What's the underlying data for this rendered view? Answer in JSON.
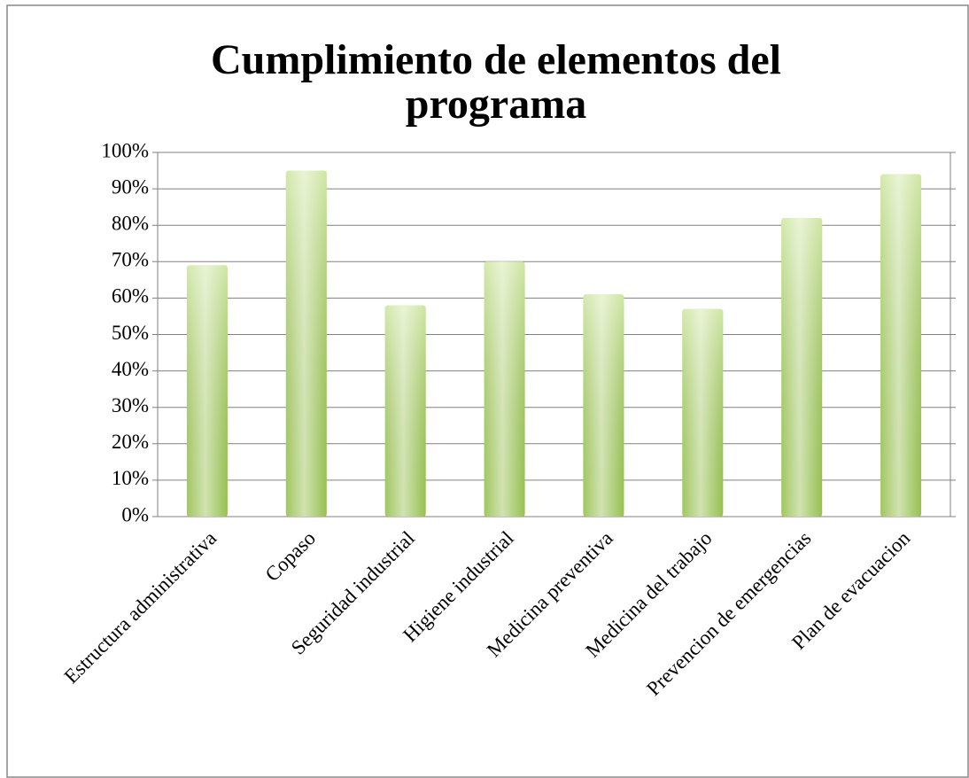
{
  "chart_data": {
    "type": "bar",
    "title": "Cumplimiento de elementos del programa",
    "categories": [
      "Estructura administrativa",
      "Copaso",
      "Seguridad industrial",
      "Higiene industrial",
      "Medicina preventiva",
      "Medicina del trabajo",
      "Prevencion de emergencias",
      "Plan de evacuacion"
    ],
    "values": [
      69,
      95,
      58,
      70,
      61,
      57,
      82,
      94
    ],
    "color": "#a8d25a",
    "ylim": [
      0,
      100
    ],
    "yticks": [
      {
        "value": 0,
        "label": "0%"
      },
      {
        "value": 10,
        "label": "10%"
      },
      {
        "value": 20,
        "label": "20%"
      },
      {
        "value": 30,
        "label": "30%"
      },
      {
        "value": 40,
        "label": "40%"
      },
      {
        "value": 50,
        "label": "50%"
      },
      {
        "value": 60,
        "label": "60%"
      },
      {
        "value": 70,
        "label": "70%"
      },
      {
        "value": 80,
        "label": "80%"
      },
      {
        "value": 90,
        "label": "90%"
      },
      {
        "value": 100,
        "label": "100%"
      }
    ],
    "grid": true
  }
}
